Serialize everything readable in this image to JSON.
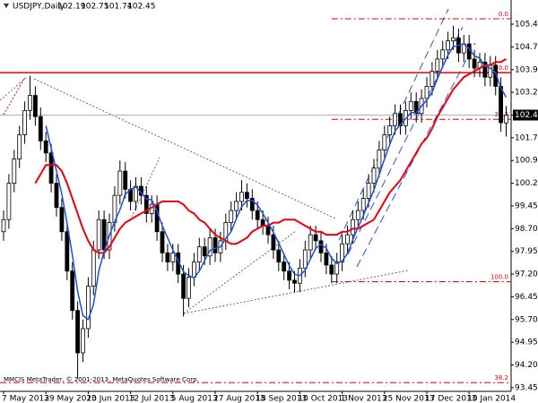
{
  "chart_data": {
    "type": "candlestick",
    "symbol": "USDJPY,Daily",
    "watermark": "MMCIS MetaTrader, © 2001-2013, MetaQuotes Software Corp.",
    "categories": [
      "7 May 2013",
      null,
      null,
      null,
      null,
      null,
      null,
      null,
      "29 May 2013",
      null,
      null,
      null,
      null,
      null,
      null,
      null,
      "20 Jun 2013",
      null,
      null,
      null,
      null,
      null,
      null,
      null,
      "12 Jul 2013",
      null,
      null,
      null,
      null,
      null,
      null,
      null,
      "5 Aug 2013",
      null,
      null,
      null,
      null,
      null,
      null,
      null,
      "27 Aug 2013",
      null,
      null,
      null,
      null,
      null,
      null,
      null,
      "18 Sep 2013",
      null,
      null,
      null,
      null,
      null,
      null,
      null,
      "10 Oct 2013",
      null,
      null,
      null,
      null,
      null,
      null,
      null,
      "1 Nov 2013",
      null,
      null,
      null,
      null,
      null,
      null,
      null,
      "25 Nov 2013",
      null,
      null,
      null,
      null,
      null,
      null,
      null,
      "17 Dec 2013",
      null,
      null,
      null,
      null,
      null,
      null,
      null,
      "10 Jan 2014",
      null,
      null,
      null,
      null,
      null,
      null,
      null
    ],
    "open": [
      98.6,
      99.0,
      100.2,
      101.0,
      101.8,
      102.6,
      103.1,
      102.4,
      101.6,
      101.2,
      100.2,
      99.4,
      98.6,
      97.3,
      96.0,
      94.6,
      95.4,
      96.8,
      98.0,
      99.0,
      98.0,
      98.9,
      99.8,
      100.6,
      100.0,
      99.6,
      100.1,
      99.8,
      99.2,
      99.5,
      98.6,
      97.9,
      97.6,
      97.9,
      97.2,
      96.4,
      97.1,
      97.6,
      98.1,
      97.8,
      98.4,
      97.9,
      98.3,
      98.9,
      99.3,
      99.6,
      99.9,
      99.7,
      99.3,
      99.0,
      98.8,
      98.5,
      98.0,
      97.6,
      97.3,
      97.0,
      96.9,
      97.4,
      98.0,
      98.5,
      98.3,
      97.9,
      97.5,
      97.2,
      97.6,
      98.2,
      98.5,
      99.0,
      99.3,
      99.7,
      100.2,
      100.7,
      101.3,
      101.8,
      102.1,
      102.5,
      102.1,
      102.6,
      102.9,
      102.5,
      103.0,
      103.4,
      103.9,
      104.3,
      104.6,
      104.9,
      105.0,
      104.5,
      104.8,
      104.3,
      104.0,
      104.2,
      103.7,
      104.1,
      103.4,
      102.19
    ],
    "high": [
      99.3,
      100.5,
      101.3,
      102.1,
      102.9,
      103.75,
      103.4,
      102.7,
      101.9,
      101.5,
      100.5,
      99.7,
      98.9,
      97.6,
      96.3,
      95.7,
      97.1,
      98.3,
      99.3,
      99.3,
      99.2,
      100.1,
      100.95,
      100.9,
      100.3,
      100.4,
      100.4,
      100.1,
      99.8,
      99.8,
      98.9,
      98.2,
      98.2,
      98.2,
      97.5,
      97.4,
      97.9,
      98.4,
      98.4,
      98.7,
      98.7,
      98.6,
      99.2,
      99.6,
      99.9,
      100.3,
      100.2,
      100.0,
      99.6,
      99.3,
      99.1,
      98.8,
      98.3,
      97.9,
      97.6,
      97.3,
      97.7,
      98.3,
      98.8,
      98.8,
      98.6,
      98.2,
      97.8,
      97.9,
      98.5,
      98.8,
      99.3,
      99.6,
      100.0,
      100.5,
      101.0,
      101.6,
      102.1,
      102.4,
      102.8,
      102.8,
      102.9,
      103.2,
      103.2,
      103.3,
      103.7,
      104.2,
      104.6,
      104.9,
      105.2,
      105.4,
      105.3,
      105.1,
      105.1,
      104.6,
      104.5,
      104.5,
      104.4,
      104.4,
      103.7,
      102.75
    ],
    "low": [
      98.3,
      98.7,
      99.9,
      100.7,
      101.5,
      102.3,
      102.1,
      101.3,
      100.9,
      99.9,
      99.1,
      98.3,
      97.0,
      95.7,
      93.75,
      94.3,
      95.1,
      96.5,
      97.7,
      97.7,
      97.7,
      98.6,
      99.5,
      99.7,
      99.3,
      99.3,
      99.5,
      98.9,
      98.9,
      98.3,
      97.6,
      97.3,
      97.3,
      96.9,
      95.8,
      96.1,
      96.8,
      97.3,
      97.5,
      97.5,
      97.6,
      97.6,
      98.0,
      98.6,
      99.0,
      99.3,
      99.4,
      99.0,
      98.7,
      98.5,
      98.2,
      97.7,
      97.3,
      97.0,
      96.7,
      96.6,
      96.6,
      97.1,
      97.7,
      98.0,
      97.6,
      97.2,
      96.9,
      96.9,
      97.3,
      97.9,
      98.2,
      98.7,
      99.0,
      99.4,
      99.9,
      100.4,
      101.0,
      101.5,
      101.8,
      101.8,
      101.8,
      102.3,
      102.2,
      102.2,
      102.7,
      103.1,
      103.6,
      104.0,
      104.3,
      104.6,
      104.2,
      104.2,
      104.0,
      103.7,
      103.7,
      103.4,
      103.4,
      103.1,
      101.9,
      101.74
    ],
    "close": [
      99.0,
      100.2,
      101.0,
      101.8,
      102.6,
      103.1,
      102.4,
      101.6,
      101.2,
      100.2,
      99.4,
      98.6,
      97.3,
      96.0,
      94.6,
      95.4,
      96.8,
      98.0,
      99.0,
      98.0,
      98.9,
      99.8,
      100.6,
      100.0,
      99.6,
      100.1,
      99.8,
      99.2,
      99.5,
      98.6,
      97.9,
      97.6,
      97.9,
      97.2,
      96.4,
      97.1,
      97.6,
      98.1,
      97.8,
      98.4,
      97.9,
      98.3,
      98.9,
      99.3,
      99.6,
      99.9,
      99.7,
      99.3,
      99.0,
      98.8,
      98.5,
      98.0,
      97.6,
      97.3,
      97.0,
      96.9,
      97.4,
      98.0,
      98.5,
      98.3,
      97.9,
      97.5,
      97.2,
      97.6,
      98.2,
      98.5,
      99.0,
      99.3,
      99.7,
      100.2,
      100.7,
      101.3,
      101.8,
      102.1,
      102.5,
      102.1,
      102.6,
      102.9,
      102.5,
      103.0,
      103.4,
      103.9,
      104.3,
      104.6,
      104.9,
      105.0,
      104.5,
      104.8,
      104.3,
      104.0,
      104.2,
      103.7,
      104.1,
      103.4,
      102.2,
      102.45
    ],
    "bull_color": "#ffffff",
    "bear_color": "#000000",
    "overlays": [
      {
        "color": "#e8000b",
        "values": [
          null,
          null,
          null,
          null,
          null,
          null,
          100.2,
          100.5,
          100.8,
          100.8,
          100.8,
          100.6,
          100.2,
          99.7,
          99.2,
          98.7,
          98.3,
          98.0,
          97.9,
          97.9,
          98.1,
          98.4,
          98.7,
          98.9,
          99.0,
          99.1,
          99.2,
          99.3,
          99.4,
          99.5,
          99.6,
          99.6,
          99.6,
          99.6,
          99.5,
          99.3,
          99.2,
          99.0,
          98.9,
          98.7,
          98.5,
          98.4,
          98.3,
          98.2,
          98.2,
          98.3,
          98.4,
          98.6,
          98.7,
          98.8,
          98.8,
          98.9,
          98.9,
          99.0,
          99.0,
          99.0,
          98.9,
          98.8,
          98.7,
          98.6,
          98.6,
          98.5,
          98.5,
          98.5,
          98.6,
          98.6,
          98.7,
          98.7,
          98.8,
          98.9,
          99.0,
          99.3,
          99.6,
          99.9,
          100.1,
          100.3,
          100.6,
          100.9,
          101.2,
          101.5,
          101.7,
          102.0,
          102.4,
          102.7,
          103.0,
          103.3,
          103.5,
          103.7,
          103.8,
          103.9,
          104.0,
          104.1,
          104.1,
          104.2,
          104.2,
          104.3
        ]
      },
      {
        "color": "#1e4fd6",
        "values": [
          null,
          null,
          null,
          null,
          null,
          null,
          null,
          null,
          102.1,
          101.35,
          100.6,
          99.85,
          98.88,
          97.83,
          96.63,
          95.83,
          95.7,
          96.2,
          97.3,
          97.95,
          98.48,
          98.93,
          99.33,
          99.83,
          100.0,
          100.08,
          99.88,
          99.68,
          99.65,
          99.28,
          98.8,
          98.4,
          98.0,
          97.65,
          97.28,
          97.15,
          97.08,
          97.3,
          97.65,
          97.98,
          98.05,
          98.1,
          98.38,
          98.6,
          99.03,
          99.43,
          99.63,
          99.63,
          99.48,
          99.2,
          98.9,
          98.58,
          98.23,
          97.85,
          97.48,
          97.2,
          97.15,
          97.33,
          97.7,
          98.05,
          98.18,
          98.05,
          97.73,
          97.55,
          97.63,
          97.88,
          98.33,
          98.75,
          99.13,
          99.55,
          99.98,
          100.48,
          101.0,
          101.48,
          101.93,
          102.13,
          102.33,
          102.53,
          102.53,
          102.75,
          102.95,
          103.2,
          103.65,
          104.05,
          104.43,
          104.7,
          104.75,
          104.8,
          104.65,
          104.4,
          104.33,
          104.05,
          104.0,
          103.85,
          103.35,
          103.04
        ]
      }
    ],
    "levels": [
      {
        "value": 105.63,
        "label": "0.0",
        "start": 62,
        "style": "dashdot"
      },
      {
        "value": 102.31,
        "label": "38.2",
        "start": 62,
        "style": "dashdot"
      },
      {
        "value": 96.95,
        "label": "100.0",
        "start": 62,
        "style": "dashdot"
      },
      {
        "value": 103.85,
        "label": "0.0",
        "style": "solid"
      },
      {
        "value": 93.62,
        "label": "38.2",
        "style": "dashdot"
      }
    ],
    "level_color": "#e8000b",
    "ylim": [
      93.33,
      106.19
    ],
    "yticks": [
      105.45,
      {
        "value": 104.7,
        "label": "104.70"
      },
      103.95,
      {
        "value": 103.2,
        "label": "103.20"
      },
      102.45,
      {
        "value": 101.7,
        "label": "101.70"
      },
      100.95,
      {
        "value": 100.2,
        "label": "100.20"
      },
      99.45,
      {
        "value": 98.7,
        "label": "98.70"
      },
      97.95,
      {
        "value": 97.2,
        "label": "97.20"
      },
      96.45,
      {
        "value": 95.7,
        "label": "95.70"
      },
      94.95,
      {
        "value": 94.2,
        "label": "94.20"
      },
      93.45
    ],
    "grid": false
  }
}
